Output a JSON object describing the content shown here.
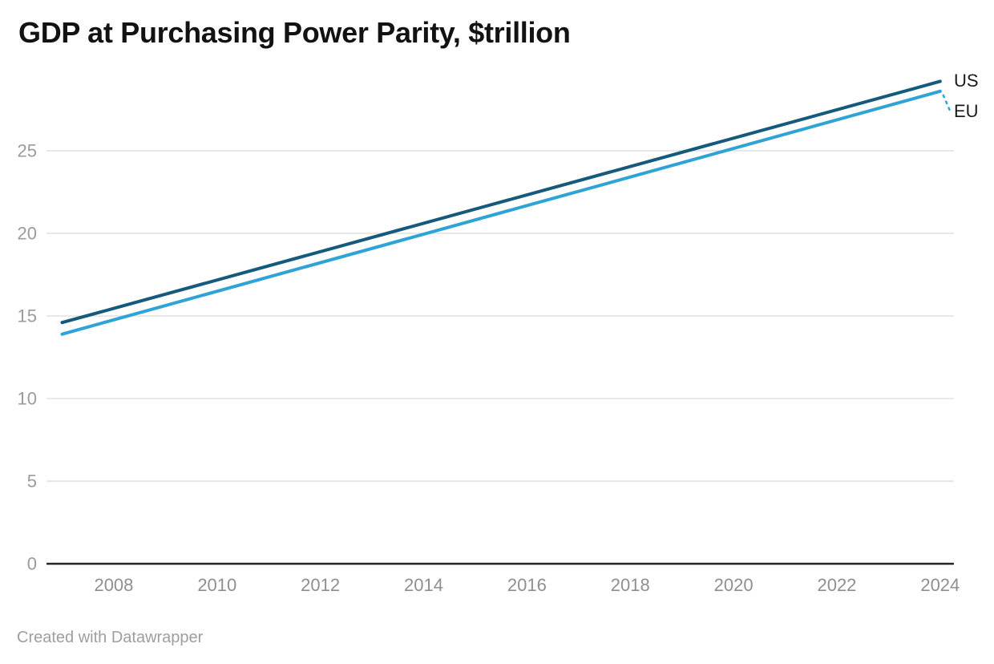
{
  "header": {
    "title": "GDP at Purchasing Power Parity, $trillion"
  },
  "footer": {
    "attribution": "Created with Datawrapper"
  },
  "colors": {
    "background": "#ffffff",
    "title": "#121212",
    "us_line": "#155a7d",
    "eu_line": "#2ea3d6",
    "grid": "#e0e0e0",
    "axis": "#262626",
    "y_tick_label": "#9b9b9b",
    "x_tick_label": "#8f8f8f",
    "series_label": "#1a1a1a",
    "attribution": "#9e9e9e"
  },
  "chart_data": {
    "type": "line",
    "title": "GDP at Purchasing Power Parity, $trillion",
    "ylabel": "",
    "xlabel": "",
    "unit": "$trillion",
    "x": [
      2007,
      2024
    ],
    "series": [
      {
        "name": "US",
        "color": "#155a7d",
        "values": [
          14.6,
          29.2
        ]
      },
      {
        "name": "EU",
        "color": "#2ea3d6",
        "values": [
          13.9,
          28.6
        ]
      }
    ],
    "xticks": [
      "2008",
      "2010",
      "2012",
      "2014",
      "2016",
      "2018",
      "2020",
      "2022",
      "2024"
    ],
    "yticks": [
      "0",
      "5",
      "10",
      "15",
      "20",
      "25"
    ],
    "xlim": [
      2007,
      2024
    ],
    "ylim": [
      0,
      29.5
    ],
    "grid": "horizontal-only",
    "line_style": "straight",
    "legend_position": "direct-labels-right-of-lines",
    "eu_label_connector": "dotted"
  }
}
